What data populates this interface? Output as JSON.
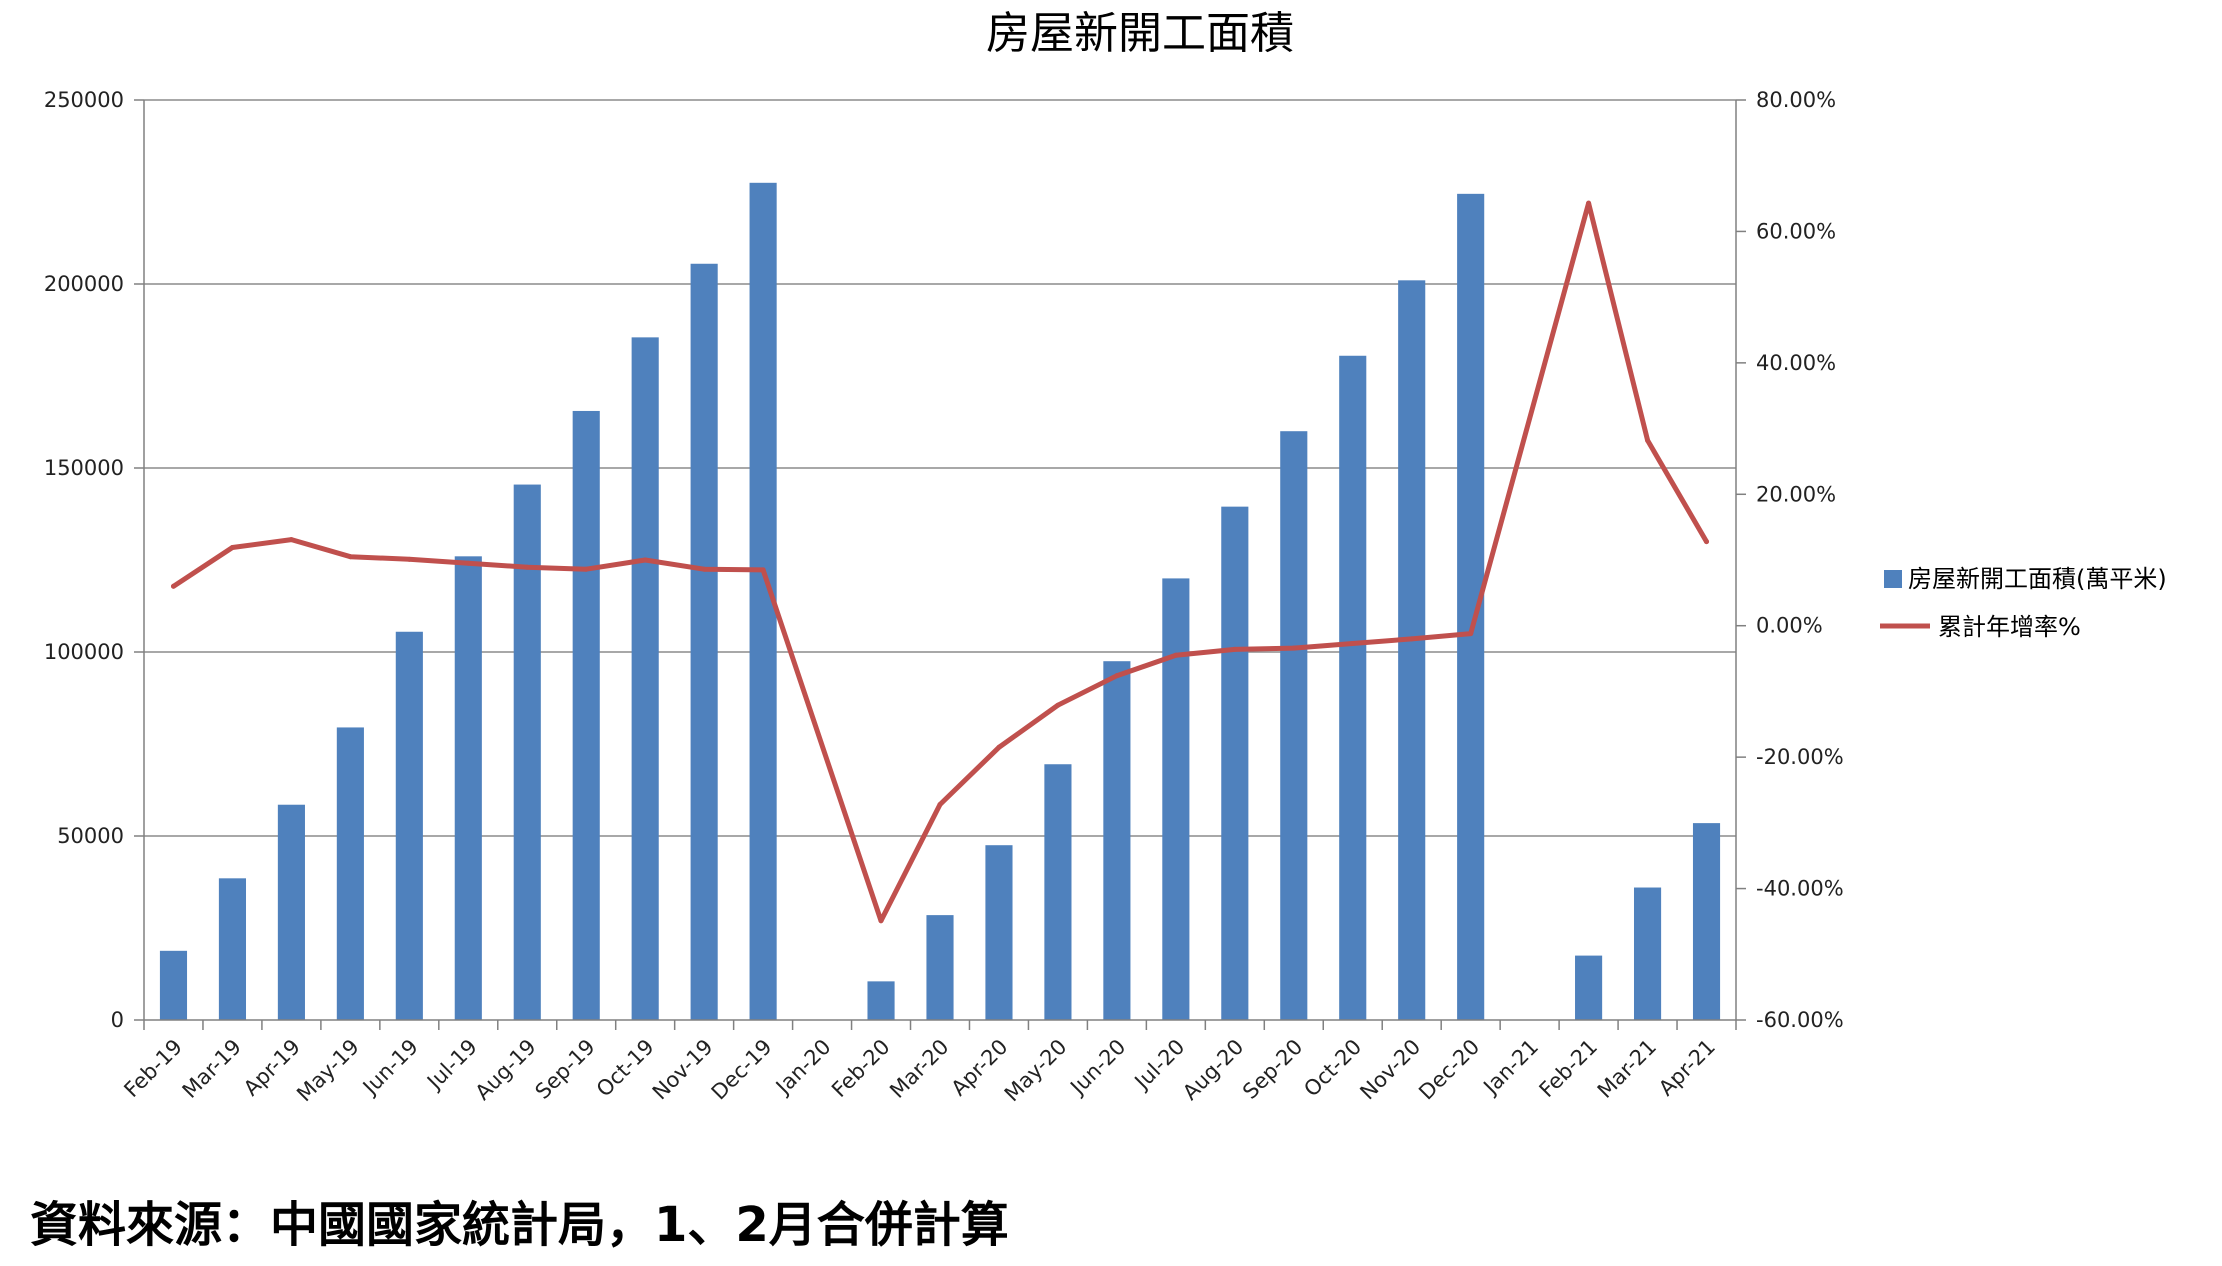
{
  "chart_data": {
    "type": "bar",
    "title": "房屋新開工面積",
    "categories": [
      "Feb-19",
      "Mar-19",
      "Apr-19",
      "May-19",
      "Jun-19",
      "Jul-19",
      "Aug-19",
      "Sep-19",
      "Oct-19",
      "Nov-19",
      "Dec-19",
      "Jan-20",
      "Feb-20",
      "Mar-20",
      "Apr-20",
      "May-20",
      "Jun-20",
      "Jul-20",
      "Aug-20",
      "Sep-20",
      "Oct-20",
      "Nov-20",
      "Dec-20",
      "Jan-21",
      "Feb-21",
      "Mar-21",
      "Apr-21"
    ],
    "series": [
      {
        "name": "房屋新開工面積(萬平米)",
        "type": "bar",
        "axis": "left",
        "color": "#4F81BD",
        "values": [
          18800,
          38500,
          58500,
          79500,
          105500,
          126000,
          145500,
          165500,
          185500,
          205500,
          227500,
          null,
          10500,
          28500,
          47500,
          69500,
          97500,
          120000,
          139500,
          160000,
          180500,
          201000,
          224500,
          null,
          17500,
          36000,
          53500
        ]
      },
      {
        "name": "累計年增率%",
        "type": "line",
        "axis": "right",
        "color": "#C0504D",
        "values": [
          6.0,
          11.9,
          13.1,
          10.5,
          10.1,
          9.5,
          8.9,
          8.6,
          10.0,
          8.6,
          8.5,
          null,
          -44.9,
          -27.2,
          -18.5,
          -12.1,
          -7.6,
          -4.5,
          -3.6,
          -3.4,
          -2.7,
          -2.0,
          -1.2,
          null,
          64.3,
          28.2,
          12.8
        ]
      }
    ],
    "y_left": {
      "ylim": [
        0,
        250000
      ],
      "ticks": [
        0,
        50000,
        100000,
        150000,
        200000,
        250000
      ],
      "tick_labels": [
        "0",
        "50000",
        "100000",
        "150000",
        "200000",
        "250000"
      ]
    },
    "y_right": {
      "ylim": [
        -60,
        80
      ],
      "ticks": [
        -60,
        -40,
        -20,
        0,
        20,
        40,
        60,
        80
      ],
      "tick_labels": [
        "-60.00%",
        "-40.00%",
        "-20.00%",
        "0.00%",
        "20.00%",
        "40.00%",
        "60.00%",
        "80.00%"
      ]
    },
    "grid": "horizontal",
    "legend_position": "right"
  },
  "footer": {
    "source": "資料來源：中國國家統計局，1、2月合併計算"
  }
}
